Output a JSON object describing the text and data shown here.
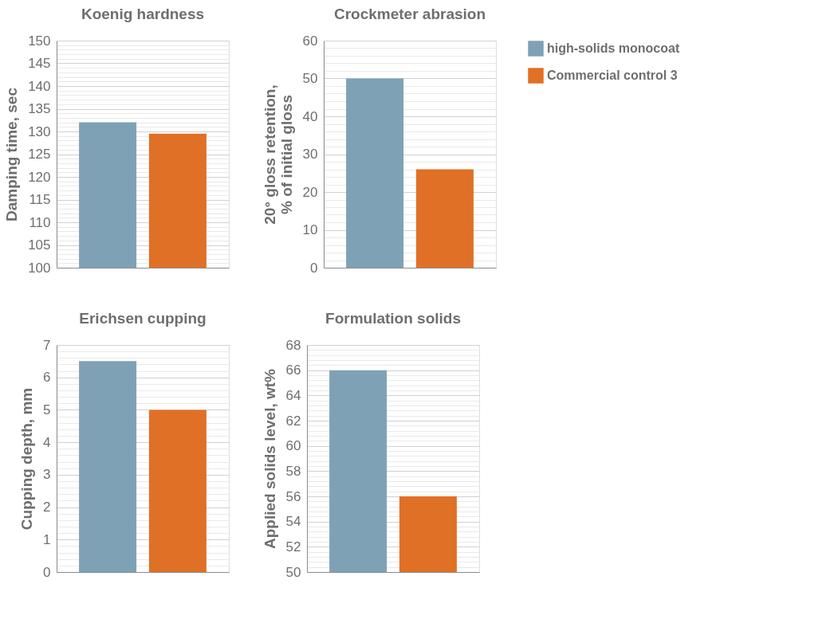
{
  "chart_data": [
    {
      "type": "bar",
      "title": "Koenig hardness",
      "ylabel": "Damping time, sec",
      "categories": [
        null
      ],
      "series": [
        {
          "color": "#7fa1b6",
          "values": [
            132
          ]
        },
        {
          "color": "#e07026",
          "values": [
            129.5
          ]
        }
      ],
      "ylim": [
        100,
        150
      ],
      "yticks": [
        100,
        {
          "value": 101,
          "label": null
        },
        {
          "value": 102,
          "label": null
        },
        {
          "value": 103,
          "label": null
        },
        {
          "value": 104,
          "label": null
        },
        105,
        {
          "value": 106,
          "label": null
        },
        {
          "value": 107,
          "label": null
        },
        {
          "value": 108,
          "label": null
        },
        {
          "value": 109,
          "label": null
        },
        110,
        {
          "value": 111,
          "label": null
        },
        {
          "value": 112,
          "label": null
        },
        {
          "value": 113,
          "label": null
        },
        {
          "value": 114,
          "label": null
        },
        115,
        {
          "value": 116,
          "label": null
        },
        {
          "value": 117,
          "label": null
        },
        {
          "value": 118,
          "label": null
        },
        {
          "value": 119,
          "label": null
        },
        120,
        {
          "value": 121,
          "label": null
        },
        {
          "value": 122,
          "label": null
        },
        {
          "value": 123,
          "label": null
        },
        {
          "value": 124,
          "label": null
        },
        125,
        {
          "value": 126,
          "label": null
        },
        {
          "value": 127,
          "label": null
        },
        {
          "value": 128,
          "label": null
        },
        {
          "value": 129,
          "label": null
        },
        130,
        {
          "value": 131,
          "label": null
        },
        {
          "value": 132,
          "label": null
        },
        {
          "value": 133,
          "label": null
        },
        {
          "value": 134,
          "label": null
        },
        135,
        {
          "value": 136,
          "label": null
        },
        {
          "value": 137,
          "label": null
        },
        {
          "value": 138,
          "label": null
        },
        {
          "value": 139,
          "label": null
        },
        140,
        {
          "value": 141,
          "label": null
        },
        {
          "value": 142,
          "label": null
        },
        {
          "value": 143,
          "label": null
        },
        {
          "value": 144,
          "label": null
        },
        145,
        {
          "value": 146,
          "label": null
        },
        {
          "value": 147,
          "label": null
        },
        {
          "value": 148,
          "label": null
        },
        {
          "value": 149,
          "label": null
        },
        150
      ],
      "grid": "y",
      "tick_labels": "y"
    },
    {
      "type": "bar",
      "title": "Crockmeter abrasion",
      "ylabel": "20° gloss retention,\n% of initial gloss",
      "categories": [
        null
      ],
      "series": [
        {
          "name": "high-solids monocoat",
          "color": "#7fa1b6",
          "values": [
            50
          ]
        },
        {
          "name": "Commercial control 3",
          "color": "#e07026",
          "values": [
            26
          ]
        }
      ],
      "ylim": [
        0,
        60
      ],
      "yticks": [
        0,
        {
          "value": 2,
          "label": null
        },
        {
          "value": 4,
          "label": null
        },
        {
          "value": 6,
          "label": null
        },
        {
          "value": 8,
          "label": null
        },
        10,
        {
          "value": 12,
          "label": null
        },
        {
          "value": 14,
          "label": null
        },
        {
          "value": 16,
          "label": null
        },
        {
          "value": 18,
          "label": null
        },
        20,
        {
          "value": 22,
          "label": null
        },
        {
          "value": 24,
          "label": null
        },
        {
          "value": 26,
          "label": null
        },
        {
          "value": 28,
          "label": null
        },
        30,
        {
          "value": 32,
          "label": null
        },
        {
          "value": 34,
          "label": null
        },
        {
          "value": 36,
          "label": null
        },
        {
          "value": 38,
          "label": null
        },
        40,
        {
          "value": 42,
          "label": null
        },
        {
          "value": 44,
          "label": null
        },
        {
          "value": 46,
          "label": null
        },
        {
          "value": 48,
          "label": null
        },
        50,
        {
          "value": 52,
          "label": null
        },
        {
          "value": 54,
          "label": null
        },
        {
          "value": 56,
          "label": null
        },
        {
          "value": 58,
          "label": null
        },
        60
      ],
      "grid": "y",
      "tick_labels": "y",
      "legend": "right"
    },
    {
      "type": "bar",
      "title": "Erichsen cupping",
      "ylabel": "Cupping depth, mm",
      "categories": [
        null
      ],
      "series": [
        {
          "color": "#7fa1b6",
          "values": [
            6.5
          ]
        },
        {
          "color": "#e07026",
          "values": [
            5
          ]
        }
      ],
      "ylim": [
        0,
        7
      ],
      "yticks": [
        0,
        {
          "value": 0.2,
          "label": null
        },
        {
          "value": 0.4,
          "label": null
        },
        {
          "value": 0.6,
          "label": null
        },
        {
          "value": 0.8,
          "label": null
        },
        1,
        {
          "value": 1.2,
          "label": null
        },
        {
          "value": 1.4,
          "label": null
        },
        {
          "value": 1.6,
          "label": null
        },
        {
          "value": 1.8,
          "label": null
        },
        2,
        {
          "value": 2.2,
          "label": null
        },
        {
          "value": 2.4,
          "label": null
        },
        {
          "value": 2.6,
          "label": null
        },
        {
          "value": 2.8,
          "label": null
        },
        3,
        {
          "value": 3.2,
          "label": null
        },
        {
          "value": 3.4,
          "label": null
        },
        {
          "value": 3.6,
          "label": null
        },
        {
          "value": 3.8,
          "label": null
        },
        4,
        {
          "value": 4.2,
          "label": null
        },
        {
          "value": 4.4,
          "label": null
        },
        {
          "value": 4.6,
          "label": null
        },
        {
          "value": 4.8,
          "label": null
        },
        5,
        {
          "value": 5.2,
          "label": null
        },
        {
          "value": 5.4,
          "label": null
        },
        {
          "value": 5.6,
          "label": null
        },
        {
          "value": 5.8,
          "label": null
        },
        6,
        {
          "value": 6.2,
          "label": null
        },
        {
          "value": 6.4,
          "label": null
        },
        {
          "value": 6.6,
          "label": null
        },
        {
          "value": 6.8,
          "label": null
        },
        7
      ],
      "grid": "y",
      "tick_labels": "y"
    },
    {
      "type": "bar",
      "title": "Formulation solids",
      "ylabel": "Applied solids level, wt%",
      "categories": [
        null
      ],
      "series": [
        {
          "color": "#7fa1b6",
          "values": [
            66
          ]
        },
        {
          "color": "#e07026",
          "values": [
            56
          ]
        }
      ],
      "ylim": [
        50,
        68
      ],
      "yticks": [
        50,
        {
          "value": 50.4,
          "label": null
        },
        {
          "value": 50.8,
          "label": null
        },
        {
          "value": 51.2,
          "label": null
        },
        {
          "value": 51.6,
          "label": null
        },
        52,
        {
          "value": 52.4,
          "label": null
        },
        {
          "value": 52.8,
          "label": null
        },
        {
          "value": 53.2,
          "label": null
        },
        {
          "value": 53.6,
          "label": null
        },
        54,
        {
          "value": 54.4,
          "label": null
        },
        {
          "value": 54.8,
          "label": null
        },
        {
          "value": 55.2,
          "label": null
        },
        {
          "value": 55.6,
          "label": null
        },
        56,
        {
          "value": 56.4,
          "label": null
        },
        {
          "value": 56.8,
          "label": null
        },
        {
          "value": 57.2,
          "label": null
        },
        {
          "value": 57.6,
          "label": null
        },
        58,
        {
          "value": 58.4,
          "label": null
        },
        {
          "value": 58.8,
          "label": null
        },
        {
          "value": 59.2,
          "label": null
        },
        {
          "value": 59.6,
          "label": null
        },
        60,
        {
          "value": 60.4,
          "label": null
        },
        {
          "value": 60.8,
          "label": null
        },
        {
          "value": 61.2,
          "label": null
        },
        {
          "value": 61.6,
          "label": null
        },
        62,
        {
          "value": 62.4,
          "label": null
        },
        {
          "value": 62.8,
          "label": null
        },
        {
          "value": 63.2,
          "label": null
        },
        {
          "value": 63.6,
          "label": null
        },
        64,
        {
          "value": 64.4,
          "label": null
        },
        {
          "value": 64.8,
          "label": null
        },
        {
          "value": 65.2,
          "label": null
        },
        {
          "value": 65.6,
          "label": null
        },
        66,
        {
          "value": 66.4,
          "label": null
        },
        {
          "value": 66.8,
          "label": null
        },
        {
          "value": 67.2,
          "label": null
        },
        {
          "value": 67.6,
          "label": null
        },
        68
      ],
      "grid": "y",
      "tick_labels": "y"
    }
  ]
}
